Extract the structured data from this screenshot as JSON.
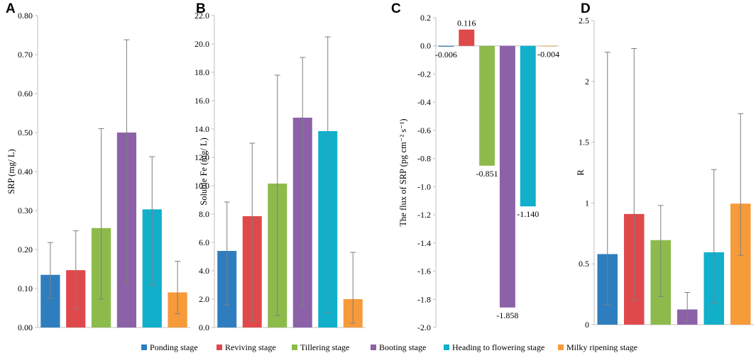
{
  "legend": [
    {
      "name": "Ponding stage",
      "color": "#2E7EBF"
    },
    {
      "name": "Reviving stage",
      "color": "#E0494C"
    },
    {
      "name": "Tillering stage",
      "color": "#8DBB4B"
    },
    {
      "name": "Booting stage",
      "color": "#8C61A8"
    },
    {
      "name": "Heading to flowering stage",
      "color": "#12AFCB"
    },
    {
      "name": "Milky ripening stage",
      "color": "#F79A3A"
    }
  ],
  "chart_data": [
    {
      "panel": "A",
      "type": "bar",
      "ylabel": "SRP (mg/ L)",
      "ylim": [
        0,
        0.8
      ],
      "yticks": [
        "0.00",
        "0.10",
        "0.20",
        "0.30",
        "0.40",
        "0.50",
        "0.60",
        "0.70",
        "0.80"
      ],
      "tick_values": [
        0,
        0.1,
        0.2,
        0.3,
        0.4,
        0.5,
        0.6,
        0.7,
        0.8
      ],
      "values": [
        0.135,
        0.147,
        0.255,
        0.5,
        0.303,
        0.09
      ],
      "errors": [
        [
          0.075,
          0.218
        ],
        [
          0.048,
          0.248
        ],
        [
          0.073,
          0.51
        ],
        [
          0.112,
          0.738
        ],
        [
          0.108,
          0.438
        ],
        [
          0.035,
          0.17
        ]
      ],
      "data_labels": null
    },
    {
      "panel": "B",
      "type": "bar",
      "ylabel": "Soluble Fe (mg/ L)",
      "ylim": [
        0,
        22
      ],
      "yticks": [
        "0.0",
        "2.0",
        "4.0",
        "6.0",
        "8.0",
        "10.0",
        "12.0",
        "14.0",
        "16.0",
        "18.0",
        "20.0",
        "22.0"
      ],
      "tick_values": [
        0,
        2,
        4,
        6,
        8,
        10,
        12,
        14,
        16,
        18,
        20,
        22
      ],
      "values": [
        5.4,
        7.85,
        10.15,
        14.8,
        13.85,
        2.0
      ],
      "errors": [
        [
          1.6,
          8.85
        ],
        [
          0.5,
          13.0
        ],
        [
          0.85,
          17.8
        ],
        [
          1.5,
          19.05
        ],
        [
          1.05,
          20.5
        ],
        [
          0.3,
          5.3
        ]
      ],
      "data_labels": null
    },
    {
      "panel": "C",
      "type": "bar",
      "ylabel": "The flux of SRP (pg cm⁻² s⁻¹)",
      "ylim": [
        -2.0,
        0.2
      ],
      "yticks": [
        "0.2",
        "0.0",
        "-0.2",
        "-0.4",
        "-0.6",
        "-0.8",
        "-1.0",
        "-1.2",
        "-1.4",
        "-1.6",
        "-1.8",
        "-2.0"
      ],
      "tick_values": [
        0.2,
        0,
        -0.2,
        -0.4,
        -0.6,
        -0.8,
        -1.0,
        -1.2,
        -1.4,
        -1.6,
        -1.8,
        -2.0
      ],
      "values": [
        -0.006,
        0.116,
        -0.851,
        -1.858,
        -1.14,
        -0.004
      ],
      "errors": null,
      "data_labels": [
        "-0.006",
        "0.116",
        "-0.851",
        "-1.858",
        "-1.140",
        "-0.004"
      ]
    },
    {
      "panel": "D",
      "type": "bar",
      "ylabel": "R",
      "ylim": [
        0,
        2.5
      ],
      "yticks": [
        "0",
        "0.5",
        "1",
        "1.5",
        "2",
        "2.5"
      ],
      "tick_values": [
        0,
        0.5,
        1,
        1.5,
        2,
        2.5
      ],
      "values": [
        0.58,
        0.91,
        0.695,
        0.125,
        0.595,
        0.995
      ],
      "errors": [
        [
          0.165,
          2.24
        ],
        [
          0.2,
          2.27
        ],
        [
          0.23,
          0.98
        ],
        [
          0.03,
          0.265
        ],
        [
          0.175,
          1.275
        ],
        [
          0.57,
          1.735
        ]
      ],
      "data_labels": null
    }
  ]
}
